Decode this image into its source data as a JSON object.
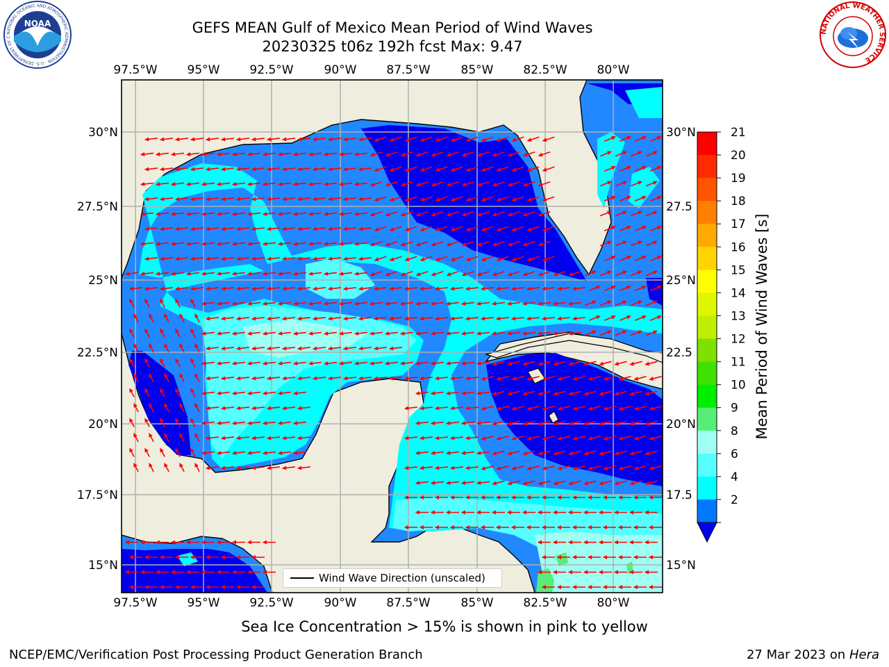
{
  "title": {
    "line1": "GEFS MEAN Gulf of Mexico Mean Period of Wind Waves",
    "line2": "20230325 t06z 192h fcst   Max: 9.47"
  },
  "map": {
    "top_lon_labels": [
      "97.5°W",
      "95°W",
      "92.5°W",
      "90°W",
      "87.5°W",
      "85°W",
      "82.5°W",
      "80°W"
    ],
    "bottom_lon_labels": [
      "97.5°W",
      "95°W",
      "92.5°W",
      "90°W",
      "87.5°W",
      "85°W",
      "82.5°W",
      "80°W"
    ],
    "left_lat_labels": [
      "30°N",
      "27.5°N",
      "25°N",
      "22.5°N",
      "20°N",
      "17.5°N",
      "15°N"
    ],
    "right_lat_labels": [
      "30°N",
      "27.5",
      "25°N",
      "22.5",
      "20°N",
      "17.5",
      "15°N"
    ],
    "legend_text": "Wind Wave Direction (unscaled)",
    "land_color": "#efedde",
    "arrow_color": "#ff0000"
  },
  "colorbar": {
    "label": "Mean Period of Wind Waves [s]",
    "tick_labels": [
      "21",
      "20",
      "19",
      "18",
      "17",
      "16",
      "15",
      "14",
      "13",
      "12",
      "11",
      "10",
      "9",
      "8",
      "6",
      "4",
      "2"
    ],
    "colors": [
      "#ff0000",
      "#ff2a00",
      "#ff5500",
      "#ff8000",
      "#ffaa00",
      "#ffd400",
      "#ffff00",
      "#e0f500",
      "#c0ee00",
      "#80e000",
      "#40e000",
      "#00ee00",
      "#55ee77",
      "#9ffff3",
      "#55ffff",
      "#00ffff",
      "#0077ff"
    ],
    "extend_color": "#0000ee"
  },
  "caption": "Sea Ice Concentration > 15% is shown in pink to yellow",
  "footer": {
    "left": "NCEP/EMC/Verification Post Processing Product Generation Branch",
    "right_date": "27 Mar 2023 on",
    "right_host": "Hera"
  },
  "logos": {
    "noaa_text": "NOAA",
    "noaa_ring": "NATIONAL OCEANIC AND ATMOSPHERIC ADMINISTRATION · U.S. DEPARTMENT OF COMMERCE",
    "nws_ring": "NATIONAL WEATHER SERVICE"
  },
  "icons": {
    "noaa_logo": "noaa-logo-icon",
    "nws_logo": "nws-logo-icon"
  }
}
